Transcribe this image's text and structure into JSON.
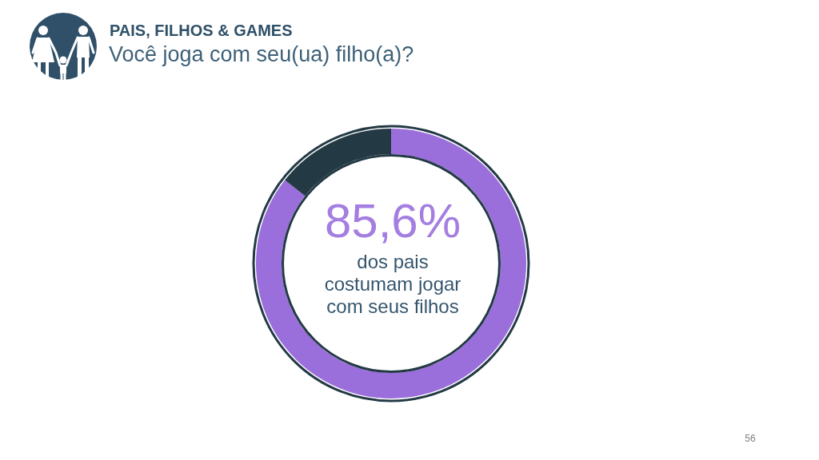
{
  "chart_data": {
    "type": "donut",
    "title": "PAIS, FILHOS & GAMES",
    "subtitle": "Você joga com seu(ua) filho(a)?",
    "categories": [
      null,
      null
    ],
    "values": [
      85.6,
      14.4
    ],
    "colors": [
      "#9a6fdb",
      "#233a45"
    ],
    "value_labels": [
      "85,6%",
      null
    ],
    "annotations": [
      "dos pais costumam jogar com seus filhos",
      "56"
    ]
  }
}
